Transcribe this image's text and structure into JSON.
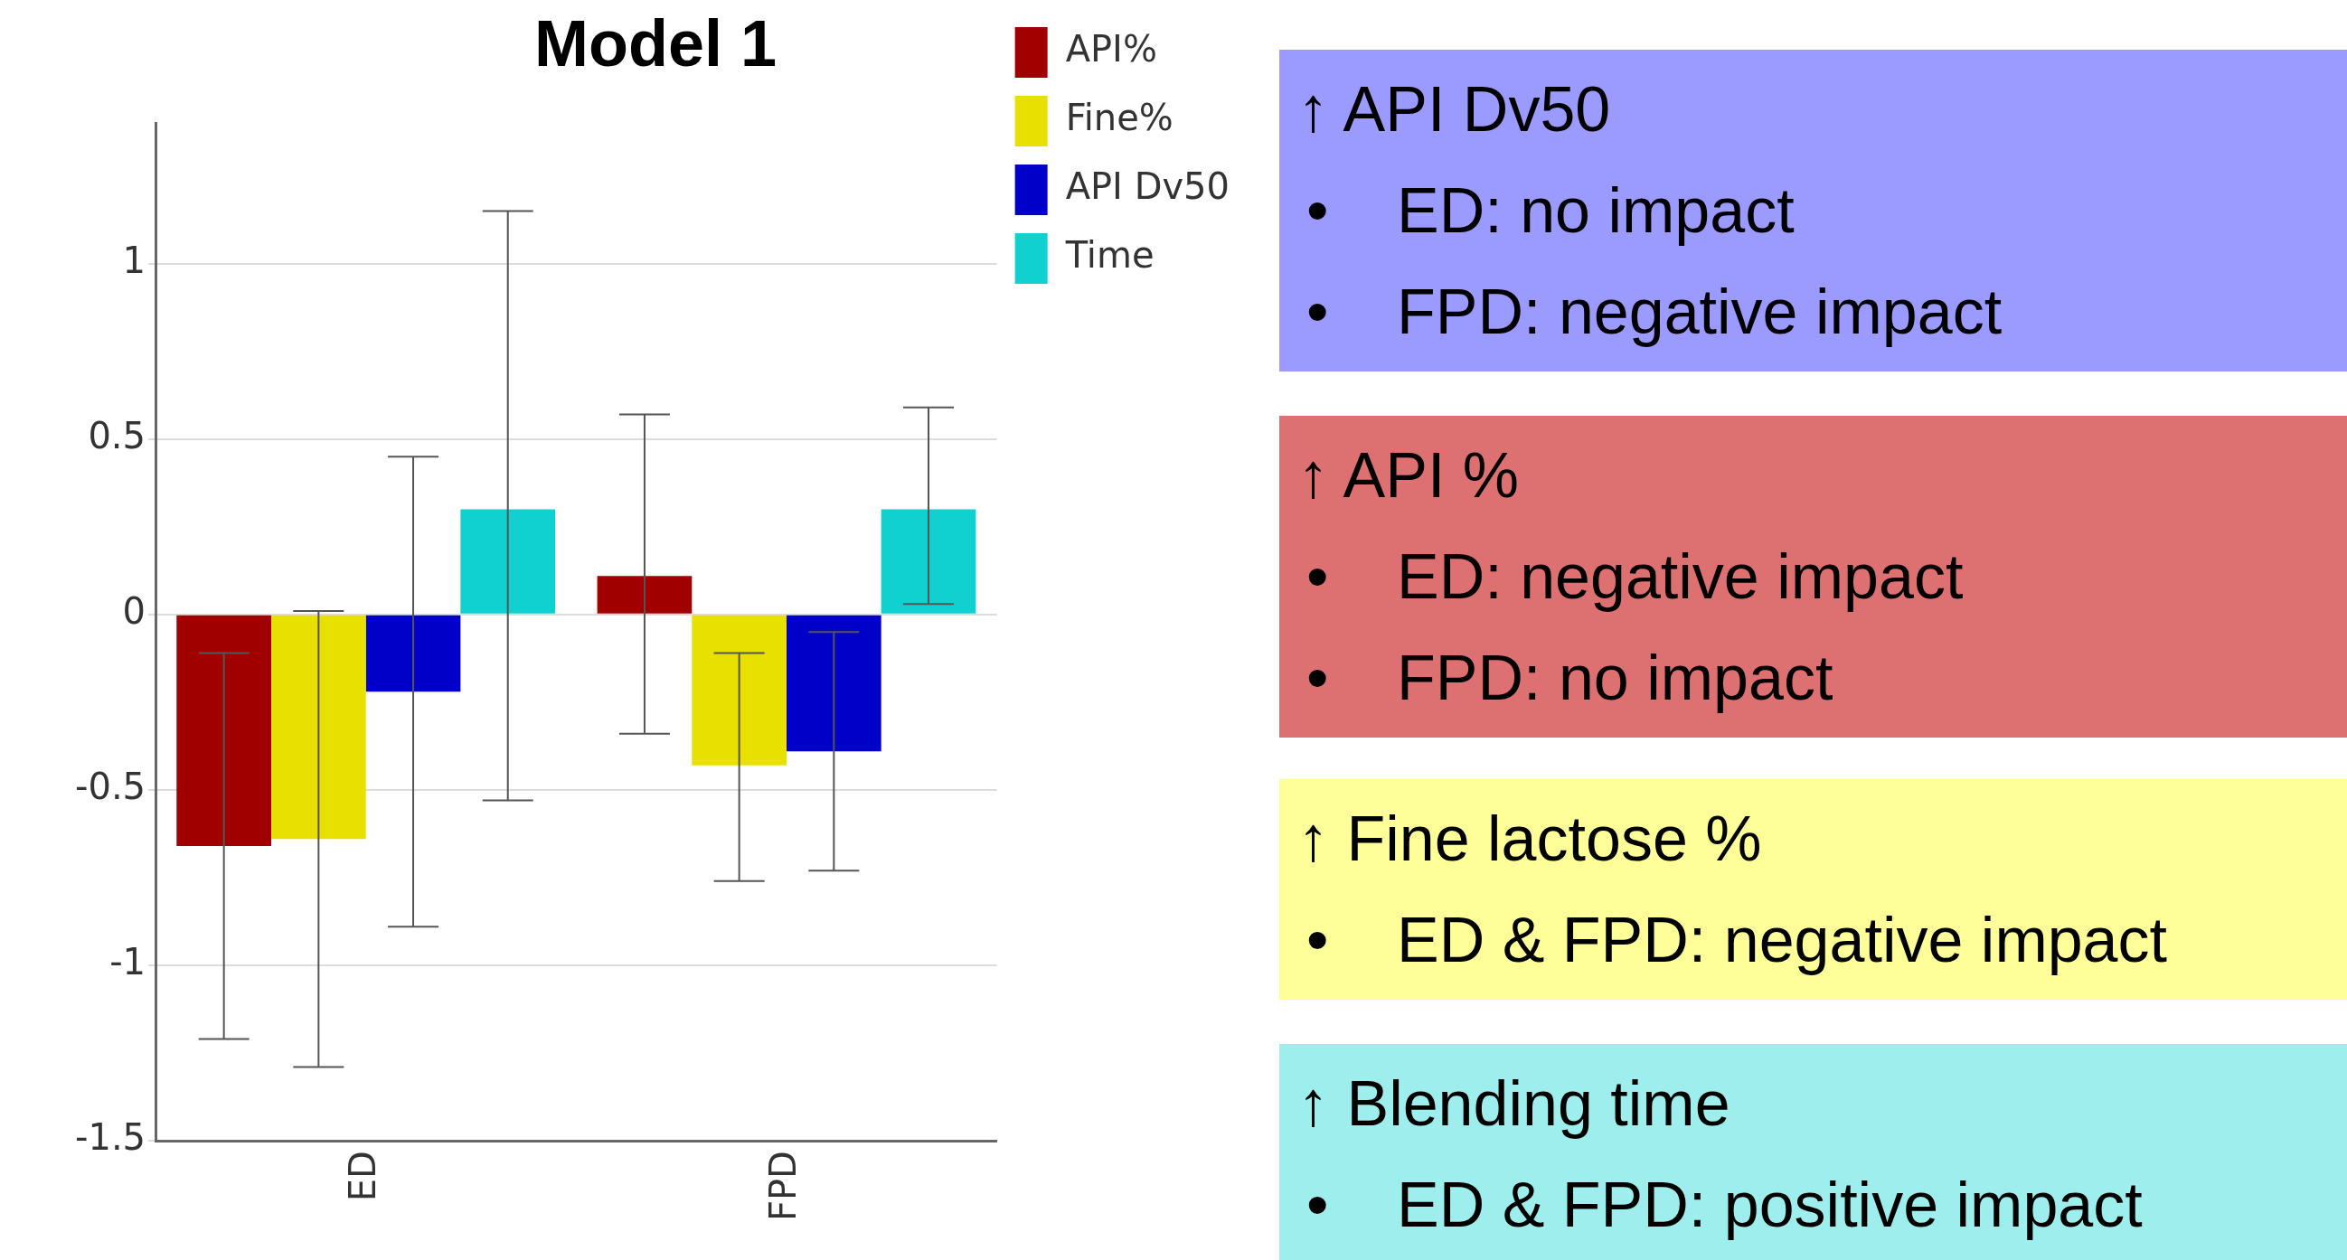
{
  "chart_data": {
    "type": "bar",
    "title": "Model 1",
    "categories": [
      "ED",
      "FPD"
    ],
    "series": [
      {
        "name": "API%",
        "color": "#a00000",
        "values": [
          -0.66,
          0.11
        ],
        "errors": [
          [
            -1.21,
            -0.11
          ],
          [
            -0.34,
            0.57
          ]
        ]
      },
      {
        "name": "Fine%",
        "color": "#e8e000",
        "values": [
          -0.64,
          -0.43
        ],
        "errors": [
          [
            -1.29,
            0.01
          ],
          [
            -0.76,
            -0.11
          ]
        ]
      },
      {
        "name": "API Dv50",
        "color": "#0000c8",
        "values": [
          -0.22,
          -0.39
        ],
        "errors": [
          [
            -0.89,
            0.45
          ],
          [
            -0.73,
            -0.05
          ]
        ]
      },
      {
        "name": "Time",
        "color": "#10d0d0",
        "values": [
          0.3,
          0.3
        ],
        "errors": [
          [
            -0.53,
            1.15
          ],
          [
            0.03,
            0.59
          ]
        ]
      }
    ],
    "ylim": [
      -1.5,
      1.4
    ],
    "yticks": [
      -1.5,
      -1,
      -0.5,
      0,
      0.5,
      1
    ],
    "grid": "y",
    "legend": "top right",
    "annotations": [
      "↑ API Dv50\n• ED: no impact\n• FPD: negative impact",
      "↑ API %\n• ED: negative impact\n• FPD: no impact",
      "↑ Fine lactose %\n• ED & FPD: negative impact",
      "↑ Blending time\n• ED & FPD: positive impact"
    ]
  }
}
